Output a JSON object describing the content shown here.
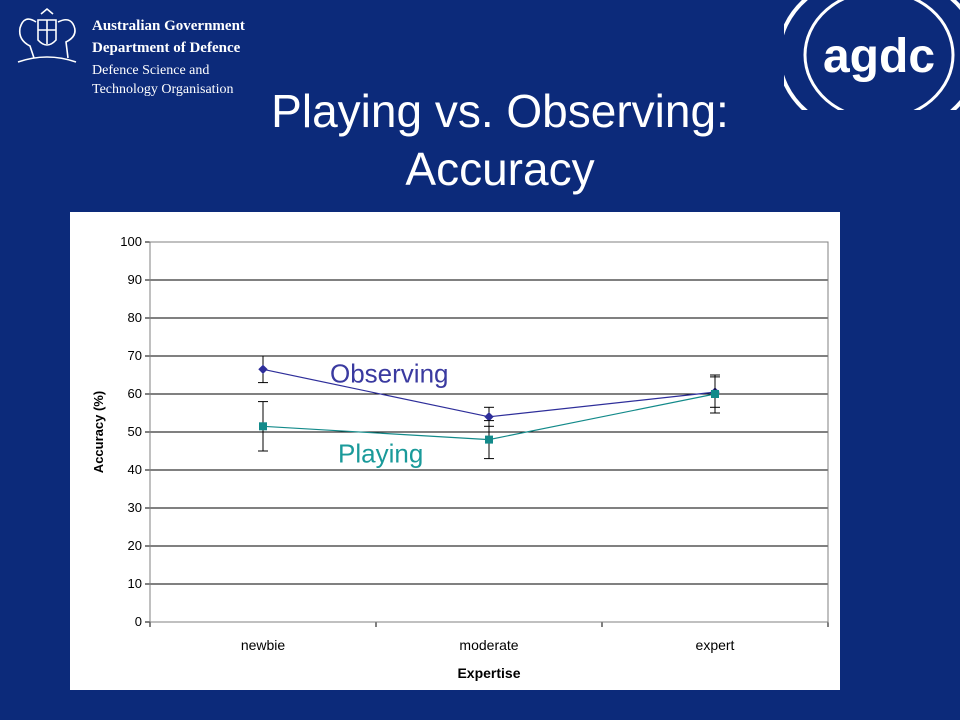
{
  "header": {
    "logo_left_lines": [
      "Australian Government",
      "Department of Defence",
      "Defence Science and",
      "Technology Organisation"
    ],
    "logo_right_text": "agdc",
    "crest_icon": "coat-of-arms-icon"
  },
  "slide": {
    "title_line1": "Playing vs. Observing:",
    "title_line2": "Accuracy"
  },
  "colors": {
    "background": "#0c2a7a",
    "observing": "#2e2e9a",
    "playing": "#138a8a",
    "observing_label": "#3a3aa0",
    "playing_label": "#1a9a9a"
  },
  "chart_data": {
    "type": "line",
    "categories": [
      "newbie",
      "moderate",
      "expert"
    ],
    "xlabel": "Expertise",
    "ylabel": "Accuracy (%)",
    "ylim": [
      0,
      100
    ],
    "yticks": [
      0,
      10,
      20,
      30,
      40,
      50,
      60,
      70,
      80,
      90,
      100
    ],
    "grid": true,
    "series": [
      {
        "name": "Observing",
        "values": [
          66.5,
          54,
          60.5
        ],
        "error": [
          3.5,
          2.5,
          4
        ],
        "marker": "diamond"
      },
      {
        "name": "Playing",
        "values": [
          51.5,
          48,
          60
        ],
        "error": [
          6.5,
          5,
          5
        ],
        "marker": "square"
      }
    ]
  }
}
